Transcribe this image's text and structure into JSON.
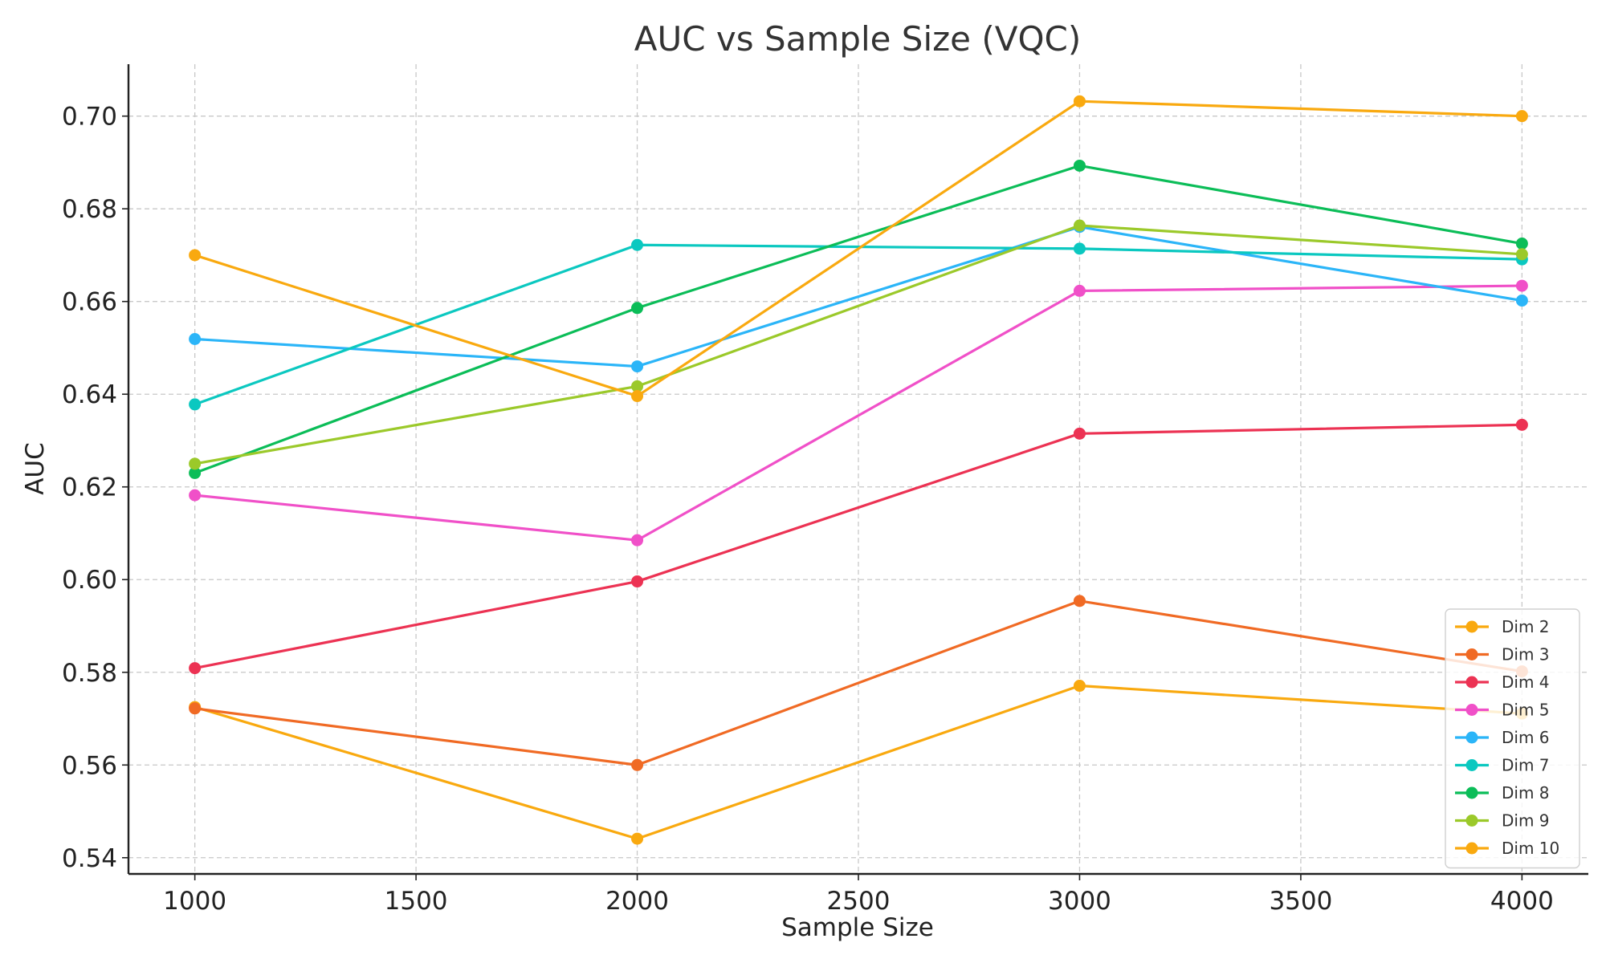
{
  "chart_data": {
    "type": "line",
    "title": "AUC vs Sample Size (VQC)",
    "xlabel": "Sample Size",
    "ylabel": "AUC",
    "x": [
      1000,
      2000,
      3000,
      4000
    ],
    "xlim": [
      850,
      4150
    ],
    "ylim": [
      0.5365,
      0.7112
    ],
    "xticks": [
      1000,
      1500,
      2000,
      2500,
      3000,
      3500,
      4000
    ],
    "yticks": [
      0.54,
      0.56,
      0.58,
      0.6,
      0.62,
      0.64,
      0.66,
      0.68,
      0.7
    ],
    "xtick_labels": [
      "1000",
      "1500",
      "2000",
      "2500",
      "3000",
      "3500",
      "4000"
    ],
    "ytick_labels": [
      "0.54",
      "0.56",
      "0.58",
      "0.60",
      "0.62",
      "0.64",
      "0.66",
      "0.68",
      "0.70"
    ],
    "grid": true,
    "legend_position": "lower-right",
    "series": [
      {
        "name": "Dim 2",
        "color": "#F9A90F",
        "values": [
          0.5725,
          0.5441,
          0.5771,
          0.5711
        ]
      },
      {
        "name": "Dim 3",
        "color": "#F06A24",
        "values": [
          0.5722,
          0.56,
          0.5954,
          0.5802
        ]
      },
      {
        "name": "Dim 4",
        "color": "#EC3253",
        "values": [
          0.5809,
          0.5996,
          0.6315,
          0.6334
        ]
      },
      {
        "name": "Dim 5",
        "color": "#F050C8",
        "values": [
          0.6182,
          0.6085,
          0.6623,
          0.6634
        ]
      },
      {
        "name": "Dim 6",
        "color": "#2BB5F8",
        "values": [
          0.6519,
          0.646,
          0.6761,
          0.6602
        ]
      },
      {
        "name": "Dim 7",
        "color": "#0BC8C0",
        "values": [
          0.6378,
          0.6722,
          0.6714,
          0.6691
        ]
      },
      {
        "name": "Dim 8",
        "color": "#0BBD58",
        "values": [
          0.623,
          0.6586,
          0.6893,
          0.6725
        ]
      },
      {
        "name": "Dim 9",
        "color": "#9BC92A",
        "values": [
          0.625,
          0.6417,
          0.6764,
          0.6702
        ]
      },
      {
        "name": "Dim 10",
        "color": "#F9A90F",
        "values": [
          0.67,
          0.6396,
          0.7032,
          0.7
        ]
      }
    ]
  }
}
